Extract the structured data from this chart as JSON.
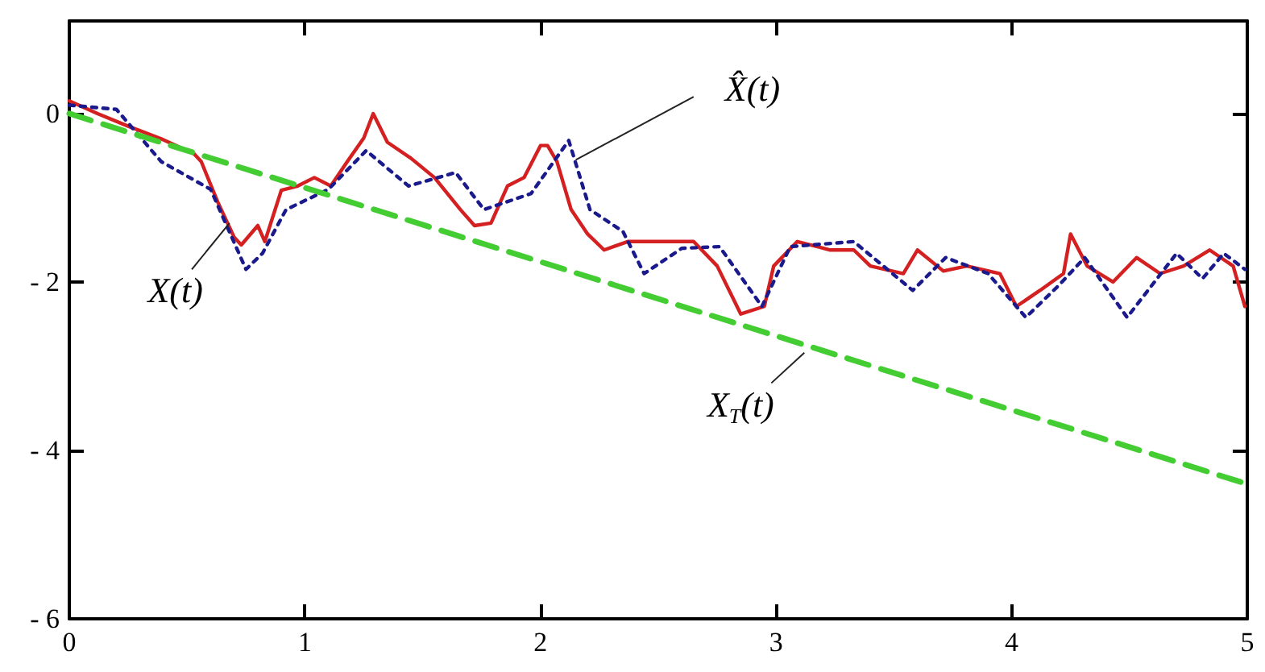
{
  "chart_data": {
    "type": "line",
    "xlim": [
      0,
      5
    ],
    "ylim": [
      -6,
      1.1
    ],
    "xticks": [
      0,
      1,
      2,
      3,
      4,
      5
    ],
    "yticks": [
      0,
      {
        "value": -2,
        "label": "- 2"
      },
      {
        "value": -4,
        "label": "- 4"
      },
      {
        "value": -6,
        "label": "- 6"
      }
    ],
    "legend": false,
    "grid": false,
    "marker": "none",
    "series": [
      {
        "name": "X(t)",
        "color": "#d42020",
        "line_style": "solid",
        "x": [
          0,
          0.12,
          0.25,
          0.39,
          0.53,
          0.56,
          0.63,
          0.7,
          0.73,
          0.8,
          0.83,
          0.9,
          0.97,
          1.04,
          1.11,
          1.18,
          1.25,
          1.29,
          1.35,
          1.45,
          1.55,
          1.66,
          1.72,
          1.79,
          1.86,
          1.93,
          2.0,
          2.03,
          2.07,
          2.13,
          2.2,
          2.27,
          2.37,
          2.51,
          2.65,
          2.75,
          2.85,
          2.95,
          2.99,
          3.09,
          3.23,
          3.33,
          3.4,
          3.54,
          3.6,
          3.71,
          3.81,
          3.95,
          4.02,
          4.12,
          4.22,
          4.25,
          4.32,
          4.43,
          4.53,
          4.63,
          4.73,
          4.84,
          4.94,
          4.99
        ],
        "values": [
          0.15,
          0,
          -0.15,
          -0.3,
          -0.48,
          -0.57,
          -1.05,
          -1.47,
          -1.56,
          -1.33,
          -1.52,
          -0.91,
          -0.86,
          -0.76,
          -0.86,
          -0.57,
          -0.29,
          0,
          -0.34,
          -0.53,
          -0.76,
          -1.14,
          -1.33,
          -1.3,
          -0.86,
          -0.76,
          -0.38,
          -0.38,
          -0.57,
          -1.14,
          -1.43,
          -1.62,
          -1.52,
          -1.52,
          -1.52,
          -1.81,
          -2.38,
          -2.29,
          -1.81,
          -1.52,
          -1.62,
          -1.62,
          -1.81,
          -1.9,
          -1.62,
          -1.87,
          -1.81,
          -1.9,
          -2.29,
          -2.1,
          -1.9,
          -1.43,
          -1.81,
          -2.0,
          -1.71,
          -1.9,
          -1.81,
          -1.62,
          -1.81,
          -2.29
        ]
      },
      {
        "name": "X̂(t)",
        "color": "#1a1a8c",
        "line_style": "dotted",
        "x": [
          0,
          0.2,
          0.39,
          0.6,
          0.75,
          0.82,
          0.92,
          1.1,
          1.26,
          1.44,
          1.64,
          1.76,
          1.96,
          2.12,
          2.21,
          2.35,
          2.44,
          2.6,
          2.76,
          2.94,
          3.06,
          3.33,
          3.58,
          3.72,
          3.9,
          4.06,
          4.2,
          4.31,
          4.49,
          4.7,
          4.81,
          4.9,
          4.99
        ],
        "values": [
          0.1,
          0.05,
          -0.57,
          -0.9,
          -1.85,
          -1.66,
          -1.14,
          -0.9,
          -0.44,
          -0.86,
          -0.7,
          -1.14,
          -0.95,
          -0.32,
          -1.14,
          -1.4,
          -1.9,
          -1.6,
          -1.58,
          -2.29,
          -1.58,
          -1.52,
          -2.1,
          -1.71,
          -1.9,
          -2.42,
          -2.04,
          -1.71,
          -2.42,
          -1.66,
          -1.96,
          -1.66,
          -1.85
        ]
      },
      {
        "name": "X$_{T}$(t)",
        "color": "#44cc33",
        "line_style": "dashed",
        "x": [
          0,
          5
        ],
        "values": [
          0,
          -4.4
        ]
      }
    ]
  }
}
